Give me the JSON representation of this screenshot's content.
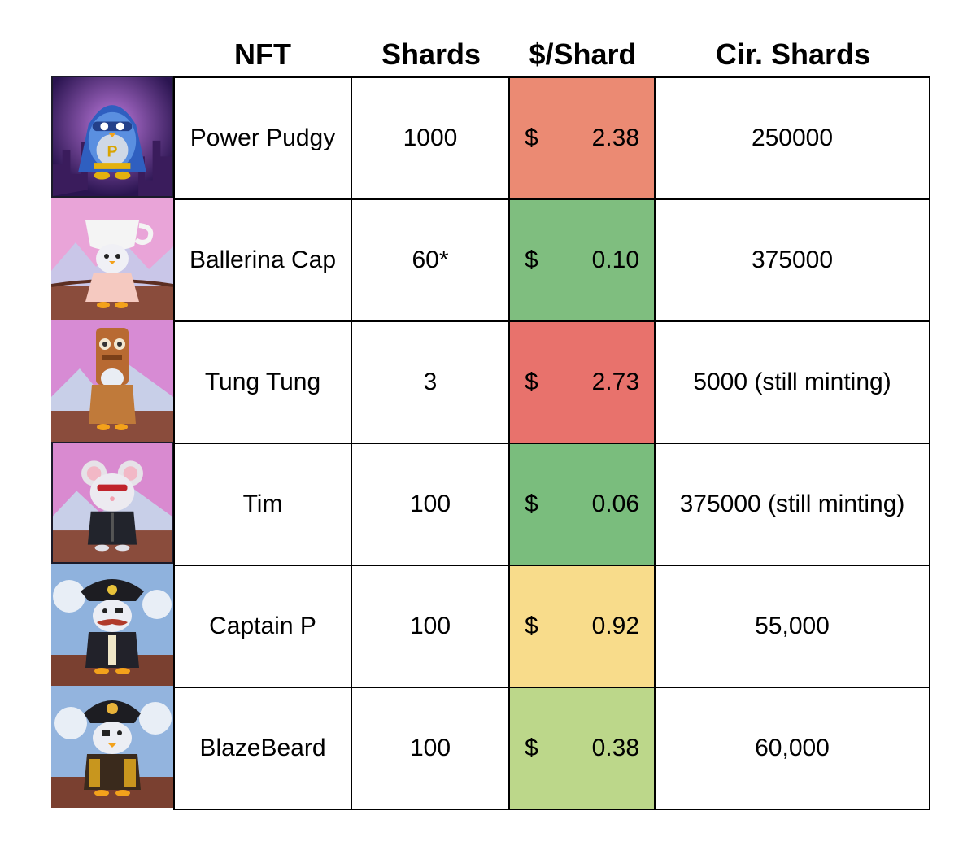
{
  "headers": {
    "nft": "NFT",
    "shards": "Shards",
    "price": "$/Shard",
    "circulating": "Cir. Shards"
  },
  "currency_symbol": "$",
  "rows": [
    {
      "name": "Power Pudgy",
      "shards": "1000",
      "price": "2.38",
      "circulating": "250000",
      "price_color": "#EB8A73",
      "image": "power-pudgy-thumbnail"
    },
    {
      "name": "Ballerina Cap",
      "shards": "60*",
      "price": "0.10",
      "circulating": "375000",
      "price_color": "#7FBE7F",
      "image": "ballerina-cap-thumbnail"
    },
    {
      "name": "Tung Tung",
      "shards": "3",
      "price": "2.73",
      "circulating": "5000 (still minting)",
      "price_color": "#E8726C",
      "image": "tung-tung-thumbnail"
    },
    {
      "name": "Tim",
      "shards": "100",
      "price": "0.06",
      "circulating": "375000 (still minting)",
      "price_color": "#7ABD7D",
      "image": "tim-thumbnail"
    },
    {
      "name": "Captain P",
      "shards": "100",
      "price": "0.92",
      "circulating": "55,000",
      "price_color": "#F8DC8B",
      "image": "captain-p-thumbnail"
    },
    {
      "name": "BlazeBeard",
      "shards": "100",
      "price": "0.38",
      "circulating": "60,000",
      "price_color": "#BCD78A",
      "image": "blazebeard-thumbnail"
    }
  ]
}
